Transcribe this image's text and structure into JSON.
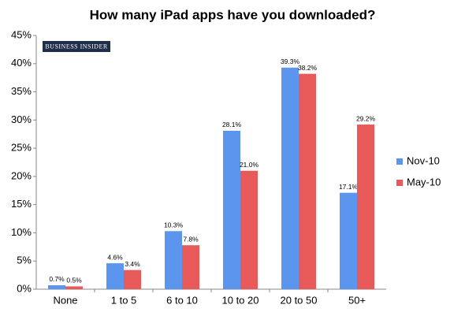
{
  "chart_data": {
    "type": "bar",
    "title": "How many iPad apps have you downloaded?",
    "watermark": "BUSINESS INSIDER",
    "categories": [
      "None",
      "1 to 5",
      "6 to 10",
      "10 to 20",
      "20 to 50",
      "50+"
    ],
    "series": [
      {
        "name": "Nov-10",
        "color": "#5b95ee",
        "values": [
          0.7,
          4.6,
          10.3,
          28.1,
          39.3,
          17.1
        ],
        "value_labels": [
          "0.7%",
          "4.6%",
          "10.3%",
          "28.1%",
          "39.3%",
          "17.1%"
        ]
      },
      {
        "name": "May-10",
        "color": "#e8595a",
        "values": [
          0.5,
          3.4,
          7.8,
          21.0,
          38.2,
          29.2
        ],
        "value_labels": [
          "0.5%",
          "3.4%",
          "7.8%",
          "21.0%",
          "38.2%",
          "29.2%"
        ]
      }
    ],
    "ylim": [
      0,
      45
    ],
    "yticks": [
      {
        "value": 0,
        "label": "0%"
      },
      {
        "value": 5,
        "label": "5%"
      },
      {
        "value": 10,
        "label": "10%"
      },
      {
        "value": 15,
        "label": "15%"
      },
      {
        "value": 20,
        "label": "20%"
      },
      {
        "value": 25,
        "label": "25%"
      },
      {
        "value": 30,
        "label": "30%"
      },
      {
        "value": 35,
        "label": "35%"
      },
      {
        "value": 40,
        "label": "40%"
      },
      {
        "value": 45,
        "label": "45%"
      }
    ],
    "legend": "right"
  }
}
